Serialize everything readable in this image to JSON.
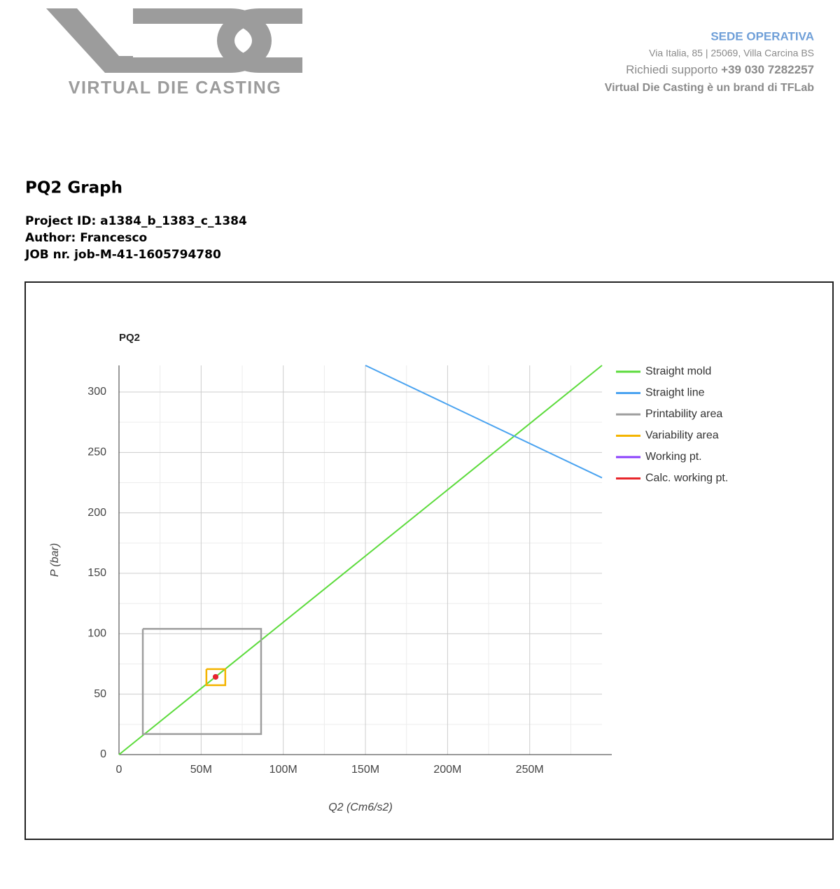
{
  "header": {
    "logo_text": "VIRTUAL DIE CASTING",
    "office_title": "SEDE OPERATIVA",
    "address": "Via Italia, 85 | 25069, Villa Carcina BS",
    "support_label": "Richiedi supporto",
    "support_phone": "+39 030 7282257",
    "brand_note": "Virtual Die Casting è un brand di TFLab"
  },
  "document": {
    "title": "PQ2 Graph",
    "project": "Project ID: a1384_b_1383_c_1384",
    "author": "Author: Francesco",
    "job": "JOB nr. job-M-41-1605794780"
  },
  "chart_data": {
    "type": "line",
    "title": "PQ2",
    "x_label": "Q2 (Cm6/s2)",
    "y_label": "P (bar)",
    "xlim": [
      0,
      294000000
    ],
    "ylim": [
      0,
      322
    ],
    "xticks": [
      0,
      {
        "value": 50000000,
        "label": "50M"
      },
      {
        "value": 100000000,
        "label": "100M"
      },
      {
        "value": 150000000,
        "label": "150M"
      },
      {
        "value": 200000000,
        "label": "200M"
      },
      {
        "value": 250000000,
        "label": "250M"
      }
    ],
    "yticks": [
      0,
      50,
      100,
      150,
      200,
      250,
      300
    ],
    "grid": true,
    "minor_grid": true,
    "legend": "right",
    "series": [
      {
        "name": "Straight mold",
        "color": "#5cdb3c",
        "mode": "line",
        "x": [
          0,
          294000000
        ],
        "values": [
          0,
          322
        ]
      },
      {
        "name": "Straight line",
        "color": "#4aa3f0",
        "mode": "line",
        "x": [
          150000000,
          294000000
        ],
        "values": [
          322,
          229
        ]
      },
      {
        "name": "Printability area",
        "color": "#9e9e9e",
        "mode": "line",
        "x": [
          14500000,
          86500000,
          86500000,
          14500000,
          14500000
        ],
        "values": [
          104,
          104,
          17,
          17,
          104
        ]
      },
      {
        "name": "Variability area",
        "color": "#f4b400",
        "mode": "line",
        "x": [
          53200000,
          64700000,
          64700000,
          53200000,
          53200000
        ],
        "values": [
          70.7,
          70.7,
          57.4,
          57.4,
          70.7
        ]
      },
      {
        "name": "Working pt.",
        "color": "#8a3ffc",
        "mode": "point",
        "x": [
          58800000
        ],
        "values": [
          64.3
        ]
      },
      {
        "name": "Calc. working pt.",
        "color": "#e8262b",
        "mode": "point",
        "x": [
          58800000
        ],
        "values": [
          64.3
        ]
      }
    ]
  }
}
